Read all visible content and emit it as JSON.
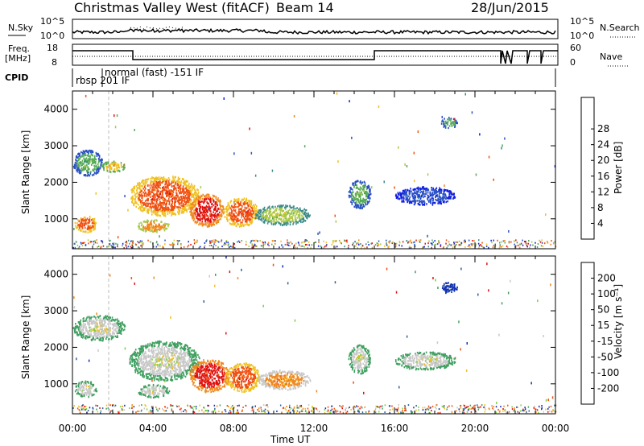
{
  "header": {
    "title": "Christmas Valley West (fitACF)",
    "beam": "Beam 14",
    "date": "28/Jun/2015"
  },
  "strip": {
    "nsky_label": "N.Sky",
    "nsky_ticks": [
      "10^5",
      "10^0"
    ],
    "nsearch_label": "N.Search",
    "nsearch_ticks": [
      "10^5",
      "10^0"
    ],
    "freq_label": "Freq.",
    "freq_unit": "[MHz]",
    "freq_ticks": [
      "18",
      "8"
    ],
    "nave_label": "Nave",
    "nave_ticks": [
      "60",
      "0"
    ],
    "cpid_label": "CPID",
    "cpid_segments": [
      "rbsp 201 IF",
      "normal (fast) -151 IF"
    ]
  },
  "chart_data": [
    {
      "type": "heatmap",
      "name": "power",
      "ylabel": "Slant Range [km]",
      "xlabel": "",
      "ylim": [
        180,
        4500
      ],
      "yticks": [
        1000,
        2000,
        3000,
        4000
      ],
      "x_ticks": [
        "00:00",
        "04:00",
        "08:00",
        "12:00",
        "16:00",
        "20:00",
        "00:00"
      ],
      "colorbar": {
        "label": "Power [dB]",
        "ticks": [
          "4",
          "8",
          "12",
          "16",
          "20",
          "24",
          "28"
        ],
        "colors": [
          "#1020e0",
          "#2a52c4",
          "#3c8a8a",
          "#55aa55",
          "#a8c848",
          "#f0c020",
          "#f08a20",
          "#f05010",
          "#e01010"
        ]
      },
      "regions": [
        {
          "t0": 0.0,
          "t1": 1.5,
          "r0": 2200,
          "r1": 2900,
          "level": 3
        },
        {
          "t0": 1.4,
          "t1": 2.6,
          "r0": 2300,
          "r1": 2600,
          "level": 5
        },
        {
          "t0": 0.1,
          "t1": 1.2,
          "r0": 650,
          "r1": 1100,
          "level": 7
        },
        {
          "t0": 2.8,
          "t1": 6.3,
          "r0": 1100,
          "r1": 2200,
          "level": 7
        },
        {
          "t0": 3.2,
          "t1": 4.8,
          "r0": 650,
          "r1": 1000,
          "level": 6
        },
        {
          "t0": 5.8,
          "t1": 7.5,
          "r0": 800,
          "r1": 1700,
          "level": 8
        },
        {
          "t0": 7.5,
          "t1": 9.2,
          "r0": 800,
          "r1": 1600,
          "level": 7
        },
        {
          "t0": 9.0,
          "t1": 11.8,
          "r0": 850,
          "r1": 1400,
          "level": 4
        },
        {
          "t0": 13.7,
          "t1": 14.8,
          "r0": 1300,
          "r1": 2100,
          "level": 3
        },
        {
          "t0": 16.0,
          "t1": 19.0,
          "r0": 1400,
          "r1": 1900,
          "level": 1
        },
        {
          "t0": 18.3,
          "t1": 19.1,
          "r0": 3500,
          "r1": 3800,
          "level": 3
        }
      ]
    },
    {
      "type": "heatmap",
      "name": "velocity",
      "ylabel": "Slant Range [km]",
      "xlabel": "Time UT",
      "ylim": [
        180,
        4500
      ],
      "yticks": [
        1000,
        2000,
        3000,
        4000
      ],
      "x_ticks": [
        "00:00",
        "04:00",
        "08:00",
        "12:00",
        "16:00",
        "20:00",
        "00:00"
      ],
      "colorbar": {
        "label": "Velocity [m s⁻¹]",
        "ticks": [
          "200",
          "100",
          "50",
          "15",
          "-15",
          "-50",
          "-100",
          "-200"
        ],
        "colors": [
          "#1030b0",
          "#3060a0",
          "#40a060",
          "#80d040",
          "#c8c8c8",
          "#f0c020",
          "#f08a20",
          "#f05010",
          "#e01010"
        ]
      },
      "regions": [
        {
          "t0": 0.0,
          "t1": 2.6,
          "r0": 2200,
          "r1": 2900,
          "level": 4
        },
        {
          "t0": 0.1,
          "t1": 1.2,
          "r0": 650,
          "r1": 1100,
          "level": 4
        },
        {
          "t0": 2.8,
          "t1": 6.3,
          "r0": 1100,
          "r1": 2200,
          "level": 4
        },
        {
          "t0": 3.2,
          "t1": 4.8,
          "r0": 650,
          "r1": 1000,
          "level": 4
        },
        {
          "t0": 5.8,
          "t1": 7.8,
          "r0": 800,
          "r1": 1700,
          "level": 8
        },
        {
          "t0": 7.6,
          "t1": 9.3,
          "r0": 800,
          "r1": 1600,
          "level": 7
        },
        {
          "t0": 9.2,
          "t1": 11.8,
          "r0": 850,
          "r1": 1400,
          "level": 6
        },
        {
          "t0": 13.7,
          "t1": 14.8,
          "r0": 1300,
          "r1": 2100,
          "level": 4
        },
        {
          "t0": 16.0,
          "t1": 19.0,
          "r0": 1400,
          "r1": 1900,
          "level": 4
        },
        {
          "t0": 18.3,
          "t1": 19.1,
          "r0": 3500,
          "r1": 3800,
          "level": 0
        }
      ]
    }
  ]
}
